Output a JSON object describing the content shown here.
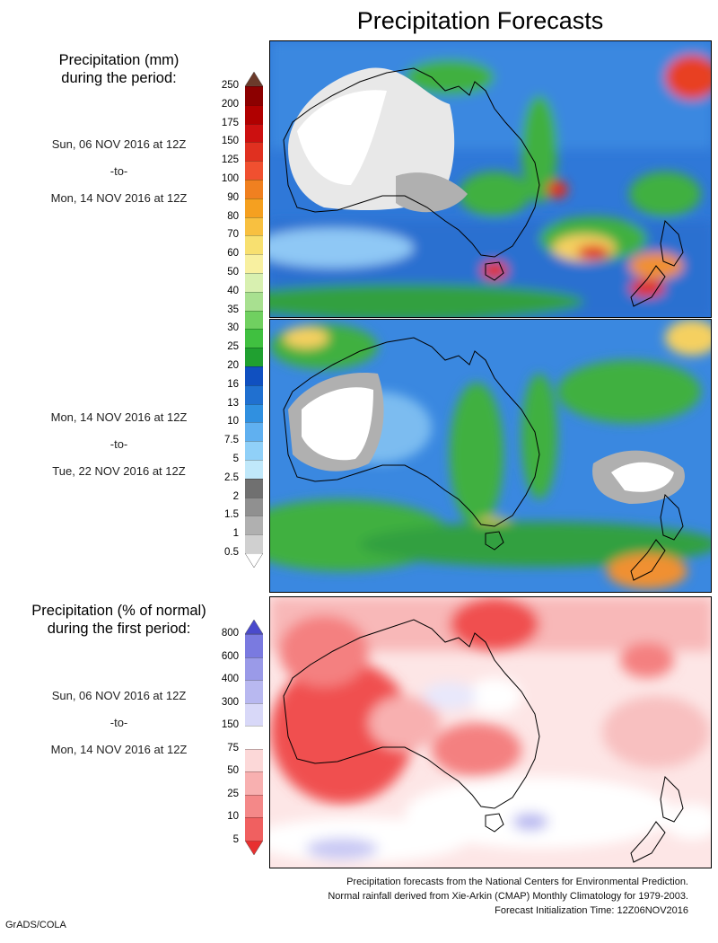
{
  "title": "Precipitation Forecasts",
  "precip_heading": {
    "line1": "Precipitation (mm)",
    "line2": "during the period:"
  },
  "period1": {
    "start": "Sun, 06 NOV 2016 at 12Z",
    "sep": "-to-",
    "end": "Mon, 14 NOV 2016 at 12Z"
  },
  "period2": {
    "start": "Mon, 14 NOV 2016 at 12Z",
    "sep": "-to-",
    "end": "Tue, 22 NOV 2016 at 12Z"
  },
  "anom_heading": {
    "line1": "Precipitation (% of normal)",
    "line2": "during the first period:"
  },
  "period3": {
    "start": "Sun, 06 NOV 2016 at 12Z",
    "sep": "-to-",
    "end": "Mon, 14 NOV 2016 at 12Z"
  },
  "precip_scale": {
    "labels": [
      "250",
      "200",
      "175",
      "150",
      "125",
      "100",
      "90",
      "80",
      "70",
      "60",
      "50",
      "40",
      "35",
      "30",
      "25",
      "20",
      "16",
      "13",
      "10",
      "7.5",
      "5",
      "2.5",
      "2",
      "1.5",
      "1",
      "0.5"
    ],
    "colors": [
      "#6b3a2a",
      "#8c0000",
      "#b00000",
      "#cc1010",
      "#e03020",
      "#f05030",
      "#f08020",
      "#f5a020",
      "#f8c040",
      "#f8e070",
      "#f8f0a0",
      "#d8f0b0",
      "#a8e090",
      "#70d060",
      "#40c040",
      "#20a030",
      "#1050c0",
      "#2070d0",
      "#3090e0",
      "#60b0f0",
      "#90d0f8",
      "#c0e8fa",
      "#707070",
      "#909090",
      "#b0b0b0",
      "#d0d0d0",
      "#ffffff"
    ]
  },
  "anom_scale": {
    "labels": [
      "800",
      "600",
      "400",
      "300",
      "150",
      "75",
      "50",
      "25",
      "10",
      "5"
    ],
    "colors": [
      "#4a4acc",
      "#7a7ae0",
      "#9a9ae8",
      "#b8b8f0",
      "#d8d8f8",
      "#ffffff",
      "#fcd8d8",
      "#f8b0b0",
      "#f48888",
      "#f06060",
      "#e83030"
    ]
  },
  "credit": {
    "line1": "Precipitation forecasts from the National Centers for Environmental Prediction.",
    "line2": "Normal rainfall derived from Xie-Arkin (CMAP) Monthly Climatology for 1979-2003.",
    "line3": "Forecast Initialization Time: 12Z06NOV2016"
  },
  "footer": "GrADS/COLA"
}
